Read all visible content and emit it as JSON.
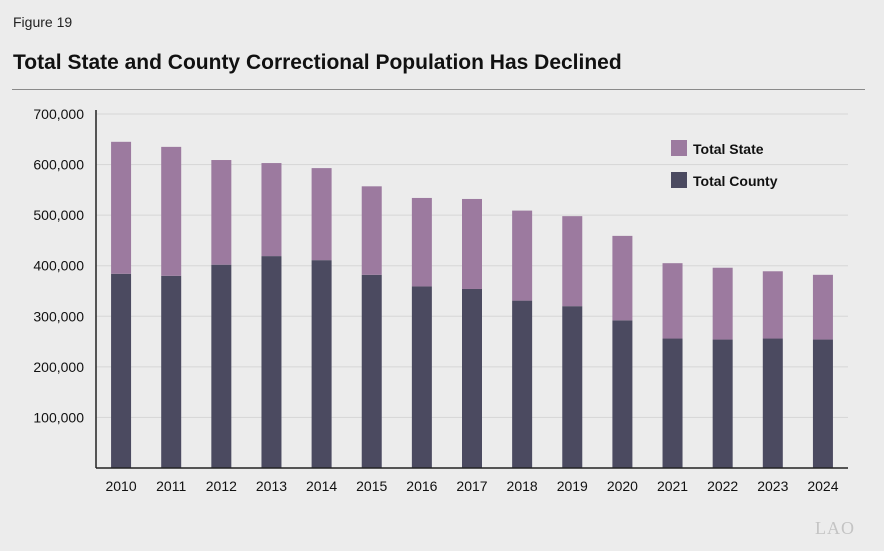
{
  "header": {
    "figure_label": "Figure 19",
    "title": "Total State and County Correctional Population Has Declined"
  },
  "watermark": "LAO",
  "colors": {
    "state": "#9c7a9f",
    "county": "#4b4a60",
    "grid": "#d6d6d6",
    "axis": "#222222"
  },
  "chart_data": {
    "type": "bar",
    "stacked": true,
    "title": "Total State and County Correctional Population Has Declined",
    "categories": [
      "2010",
      "2011",
      "2012",
      "2013",
      "2014",
      "2015",
      "2016",
      "2017",
      "2018",
      "2019",
      "2020",
      "2021",
      "2022",
      "2023",
      "2024"
    ],
    "series": [
      {
        "name": "Total County",
        "color": "#4b4a60",
        "values": [
          384000,
          380000,
          402000,
          419000,
          411000,
          382000,
          359000,
          354000,
          331000,
          320000,
          292000,
          256000,
          254000,
          256000,
          254000
        ]
      },
      {
        "name": "Total State",
        "color": "#9c7a9f",
        "values": [
          261000,
          255000,
          207000,
          184000,
          182000,
          175000,
          175000,
          178000,
          178000,
          178000,
          167000,
          149000,
          142000,
          133000,
          128000
        ]
      }
    ],
    "yticks": [
      "100,000",
      "200,000",
      "300,000",
      "400,000",
      "500,000",
      "600,000",
      "700,000"
    ],
    "ytick_values": [
      100000,
      200000,
      300000,
      400000,
      500000,
      600000,
      700000
    ],
    "ylim": [
      0,
      700000
    ],
    "grid": true,
    "legend": {
      "position": "top-right",
      "order": [
        "Total State",
        "Total County"
      ]
    }
  }
}
